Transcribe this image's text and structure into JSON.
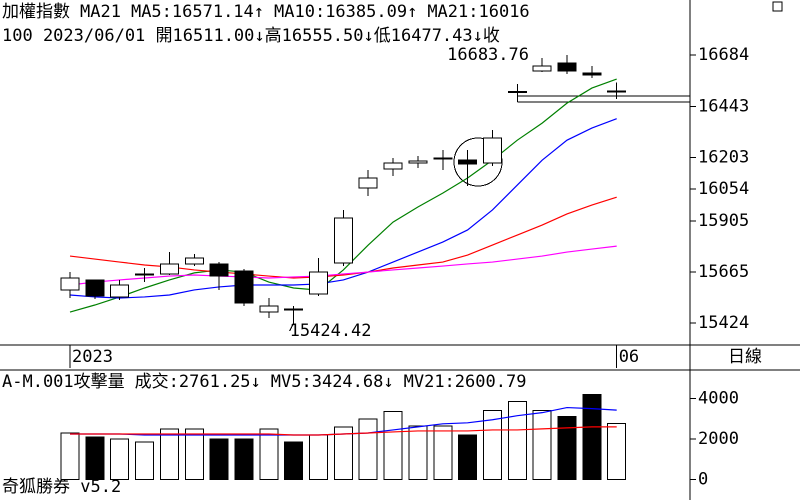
{
  "chart_data": [
    {
      "type": "candlestick",
      "title": "加權指數",
      "subtitle": "MA21",
      "legend": [
        {
          "text": "MA5:16571.14↑",
          "color": "#008000"
        },
        {
          "text": "MA10:16385.09↑",
          "color": "#0000ff"
        },
        {
          "text": "MA21:16016",
          "color": "#ff0000"
        }
      ],
      "info": "100 2023/06/01 開16511.00↓高16555.50↓低16477.43↓收",
      "period": "日線",
      "categories": [
        "2023",
        null,
        null,
        null,
        null,
        null,
        null,
        null,
        null,
        null,
        null,
        null,
        null,
        null,
        null,
        null,
        null,
        null,
        null,
        null,
        null,
        null,
        "06"
      ],
      "open": [
        15579,
        15626,
        15546,
        15650,
        15654,
        15701,
        15701,
        15669,
        15476,
        15490,
        15560,
        15706,
        16059,
        16148,
        16176,
        16195,
        16190,
        16176,
        16510,
        16609,
        16646,
        16599,
        16511.0
      ],
      "high": [
        15664,
        15626,
        15626,
        15683,
        15758,
        15748,
        15711,
        15678,
        15541,
        15504,
        15730,
        15955,
        16143,
        16200,
        16209,
        16237,
        16237,
        16331,
        16548,
        16670,
        16683.76,
        16632,
        16555.5
      ],
      "low": [
        15541,
        15537,
        15532,
        15617,
        15650,
        15692,
        15579,
        15504,
        15448,
        15424.42,
        15551,
        15692,
        16021,
        16115,
        16153,
        16143,
        16068,
        16162,
        16463,
        16604,
        16595,
        16576,
        16477.43
      ],
      "close": [
        15636,
        15551,
        15603,
        15655,
        15701,
        15730,
        15645,
        15518,
        15504,
        15485,
        15664,
        15918,
        16106,
        16176,
        16185,
        16200,
        16171,
        16294,
        16513,
        16632,
        16609,
        16590,
        16515
      ],
      "series": [
        {
          "color": "#008000",
          "values": [
            15476,
            15509,
            15547,
            15589,
            15627,
            15660,
            15674,
            15664,
            15617,
            15589,
            15579,
            15674,
            15791,
            15899,
            15970,
            16035,
            16106,
            16190,
            16284,
            16364,
            16458,
            16529,
            16571.14
          ]
        },
        {
          "color": "#0000ff",
          "values": [
            15556,
            15547,
            15542,
            15547,
            15556,
            15580,
            15594,
            15603,
            15603,
            15603,
            15608,
            15627,
            15664,
            15711,
            15758,
            15805,
            15862,
            15956,
            16073,
            16190,
            16284,
            16341,
            16385.09
          ]
        },
        {
          "color": "#ff0000",
          "values": [
            15739,
            15725,
            15711,
            15697,
            15688,
            15674,
            15664,
            15655,
            15645,
            15636,
            15641,
            15650,
            15664,
            15683,
            15697,
            15711,
            15744,
            15791,
            15838,
            15885,
            15937,
            15979,
            16016
          ]
        },
        {
          "color": "#ff00ff",
          "values": [
            15603,
            15617,
            15627,
            15636,
            15645,
            15650,
            15645,
            15641,
            15636,
            15641,
            15645,
            15655,
            15664,
            15674,
            15683,
            15692,
            15702,
            15711,
            15725,
            15739,
            15758,
            15772,
            15786
          ]
        }
      ],
      "levels": [
        16491,
        16463
      ],
      "ylim": [
        15321,
        16943
      ],
      "yticks": [
        16684,
        16443,
        16203,
        16054,
        15905,
        15665,
        15424
      ]
    },
    {
      "type": "bar",
      "title": "A-M.001攻擊量",
      "legend": [
        {
          "text": "成交:2761.25↓",
          "color": "#008000"
        },
        {
          "text": "MV5:3424.68↓",
          "color": "#0000ff"
        },
        {
          "text": "MV21:2600.79",
          "color": "#ff0000"
        }
      ],
      "footer": "奇狐勝券 v5.2",
      "values": [
        2300,
        2100,
        2000,
        1850,
        2500,
        2500,
        2000,
        2000,
        2500,
        1850,
        2200,
        2600,
        3000,
        3350,
        2650,
        2650,
        2200,
        3400,
        3850,
        3400,
        3100,
        4200,
        2761.25
      ],
      "series": [
        {
          "color": "#0000ff",
          "values": [
            2250,
            2250,
            2250,
            2200,
            2200,
            2200,
            2200,
            2200,
            2200,
            2200,
            2200,
            2250,
            2300,
            2450,
            2600,
            2750,
            2800,
            2950,
            3150,
            3300,
            3550,
            3500,
            3424.68
          ]
        },
        {
          "color": "#ff0000",
          "values": [
            2250,
            2250,
            2250,
            2250,
            2250,
            2250,
            2250,
            2250,
            2250,
            2200,
            2200,
            2250,
            2300,
            2350,
            2400,
            2400,
            2400,
            2450,
            2450,
            2500,
            2550,
            2600,
            2600.79
          ]
        }
      ],
      "ylim": [
        -1000,
        5400
      ],
      "yticks": [
        4000,
        2000,
        0
      ]
    }
  ]
}
